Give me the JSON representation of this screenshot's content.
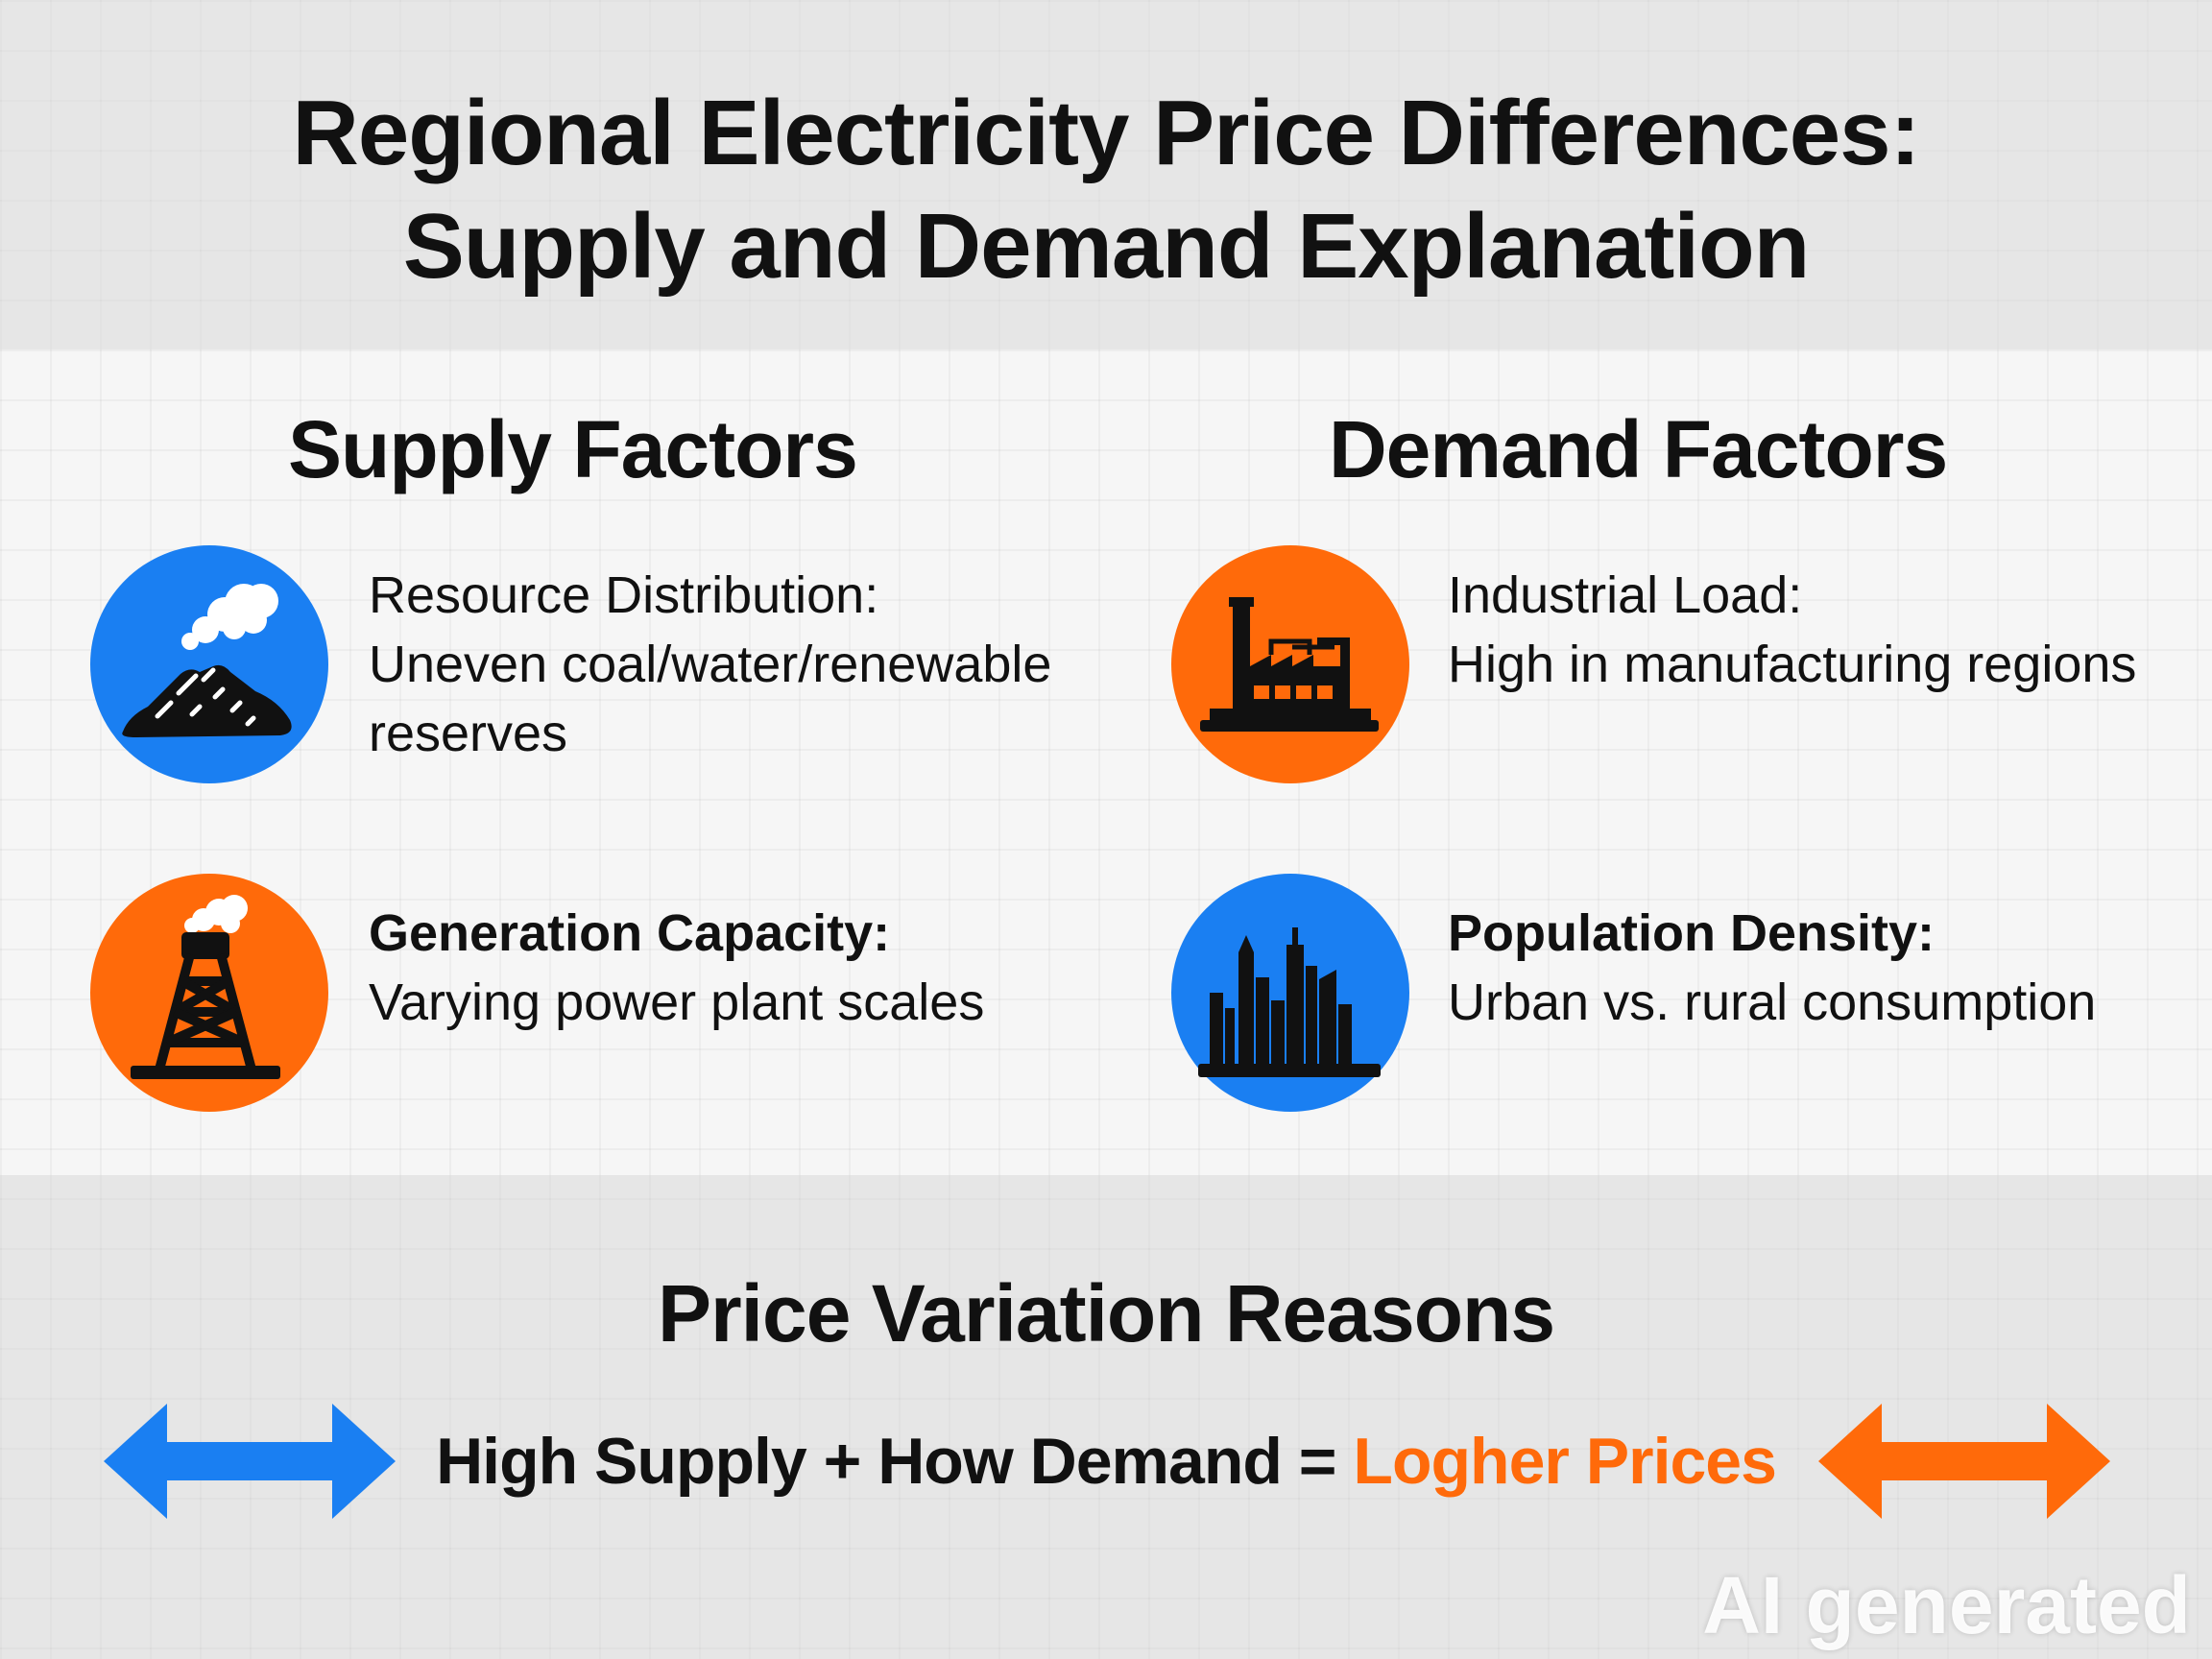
{
  "title": {
    "line1": "Regional Electricity Price Differences:",
    "line2": "Supply and Demand Explanation"
  },
  "colors": {
    "blue": "#1a7ff2",
    "orange": "#ff6a0a",
    "text": "#111111"
  },
  "supply": {
    "heading": "Supply Factors",
    "items": [
      {
        "icon": "coal-pile-smoke-icon",
        "title": "Resource Distribution:",
        "desc1": "Uneven coal/water/renewable",
        "desc2": "reserves"
      },
      {
        "icon": "power-tower-smoke-icon",
        "title": "Generation Capacity:",
        "desc1": "Varying power plant scales"
      }
    ]
  },
  "demand": {
    "heading": "Demand Factors",
    "items": [
      {
        "icon": "factory-icon",
        "title": "Industrial Load:",
        "desc1": "High in manufacturing regions"
      },
      {
        "icon": "city-skyline-icon",
        "title": "Population Density:",
        "desc1": "Urban vs. rural consumption"
      }
    ]
  },
  "reasons": {
    "heading": "Price Variation Reasons",
    "equation_left": "High Supply + How Demand = ",
    "equation_result": "Logher Prices",
    "left_arrow_icon": "double-arrow-icon",
    "right_arrow_icon": "double-arrow-icon"
  },
  "watermark": "AI generated"
}
